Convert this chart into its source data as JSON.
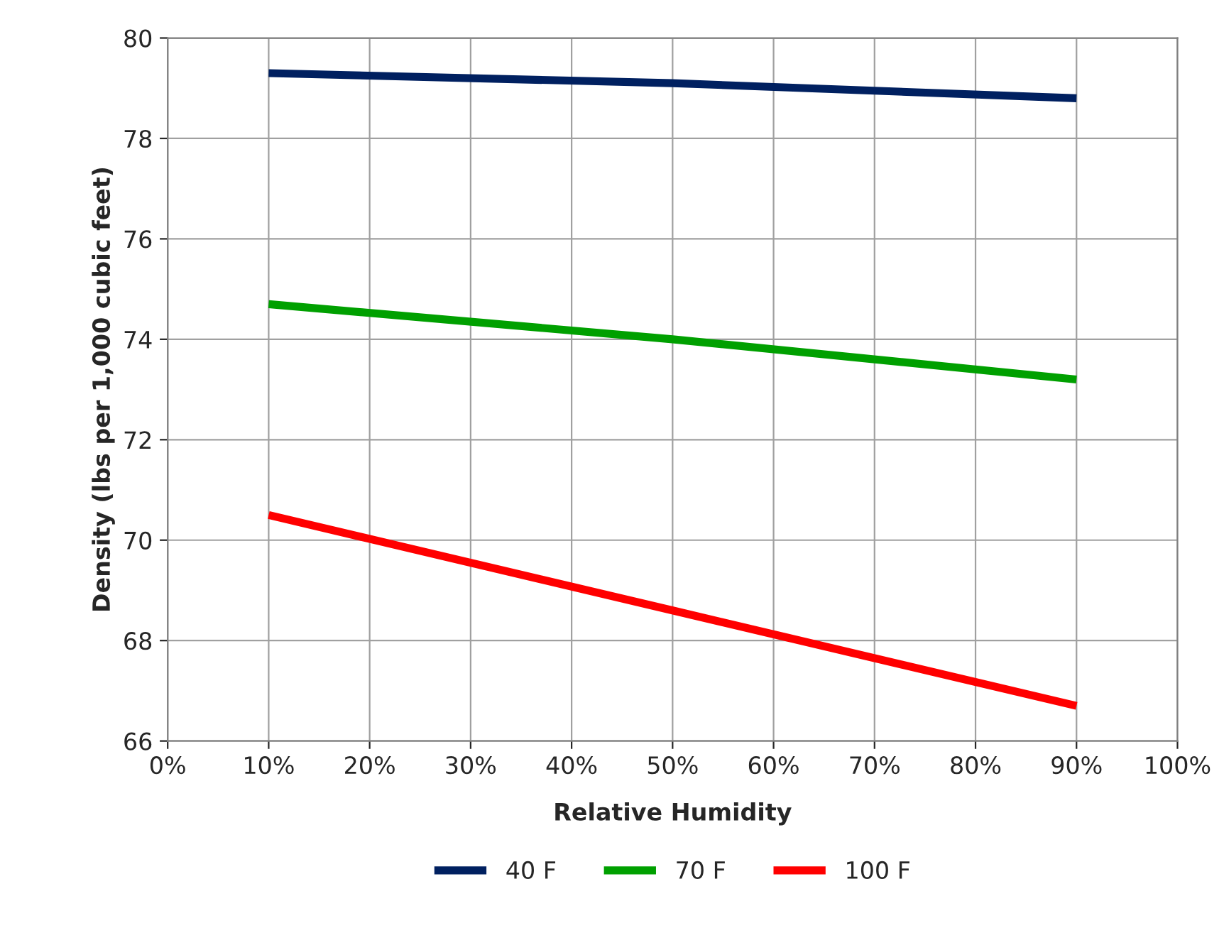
{
  "chart_data": {
    "type": "line",
    "xlabel": "Relative Humidity",
    "ylabel": "Density (lbs per 1,000 cubic feet)",
    "x": [
      10,
      50,
      90
    ],
    "series": [
      {
        "name": "40 F",
        "color": "#002060",
        "values": [
          79.3,
          79.1,
          78.8
        ]
      },
      {
        "name": "70 F",
        "color": "#00a000",
        "values": [
          74.7,
          74.0,
          73.2
        ]
      },
      {
        "name": "100 F",
        "color": "#ff0000",
        "values": [
          70.5,
          68.6,
          66.7
        ]
      }
    ],
    "xlim": [
      0,
      100
    ],
    "xticks": [
      {
        "value": 0,
        "label": "0%"
      },
      {
        "value": 10,
        "label": "10%"
      },
      {
        "value": 20,
        "label": "20%"
      },
      {
        "value": 30,
        "label": "30%"
      },
      {
        "value": 40,
        "label": "40%"
      },
      {
        "value": 50,
        "label": "50%"
      },
      {
        "value": 60,
        "label": "60%"
      },
      {
        "value": 70,
        "label": "70%"
      },
      {
        "value": 80,
        "label": "80%"
      },
      {
        "value": 90,
        "label": "90%"
      },
      {
        "value": 100,
        "label": "100%"
      }
    ],
    "ylim": [
      66,
      80
    ],
    "yticks": [
      66,
      68,
      70,
      72,
      74,
      76,
      78,
      80
    ],
    "grid": true,
    "legend": "bottom",
    "marker": "none",
    "line_style": "solid"
  }
}
